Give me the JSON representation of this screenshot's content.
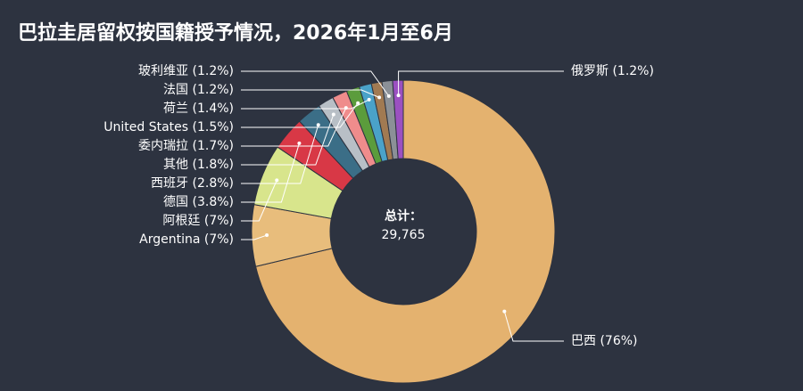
{
  "chart_data": {
    "type": "donut",
    "title": "巴拉圭居留权按国籍授予情况，2026年1月至6月",
    "values": [
      76,
      7,
      7,
      3.8,
      2.8,
      1.8,
      1.7,
      1.5,
      1.4,
      1.2,
      1.2,
      1.2
    ],
    "value_labels": [
      "巴西 (76%)",
      "Argentina (7%)",
      "阿根廷 (7%)",
      "德国 (3.8%)",
      "西班牙 (2.8%)",
      "其他 (1.8%)",
      "委内瑞拉 (1.7%)",
      "United States (1.5%)",
      "荷兰 (1.4%)",
      "法国 (1.2%)",
      "玻利维亚 (1.2%)",
      "俄罗斯 (1.2%)"
    ],
    "colors": [
      "#e4b26f",
      "#e8bd7c",
      "#d8e58c",
      "#d83846",
      "#3b6e87",
      "#b8bfc6",
      "#ef8c8c",
      "#5b9c3c",
      "#4aa2c9",
      "#a17a52",
      "#8b9097",
      "#9b50c1"
    ],
    "center_title": "总计：",
    "total": {
      "value": 29765,
      "label": "29,765"
    }
  }
}
